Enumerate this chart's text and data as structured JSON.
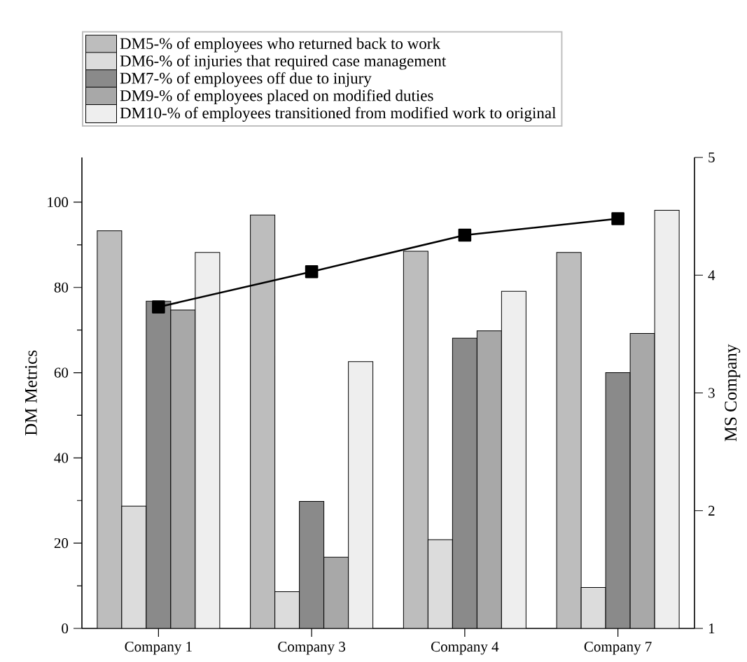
{
  "chart_data": {
    "type": "bar",
    "categories": [
      "Company 1",
      "Company 3",
      "Company 4",
      "Company 7"
    ],
    "ylabel": "DM Metrics",
    "y2label": "MS Company",
    "ylim": [
      0,
      110.5
    ],
    "yticks": [
      0,
      {
        "value": 10,
        "label": null
      },
      20,
      {
        "value": 30,
        "label": null
      },
      40,
      {
        "value": 50,
        "label": null
      },
      60,
      {
        "value": 70,
        "label": null
      },
      80,
      {
        "value": 90,
        "label": null
      },
      100
    ],
    "y2lim": [
      1,
      5
    ],
    "y2ticks": [
      1,
      2,
      3,
      4,
      5
    ],
    "legend": "top",
    "grid": false,
    "marker": "square",
    "line_style": "solid",
    "series": [
      {
        "name": "DM5-% of employees who returned back to work",
        "color": "#bdbdbd",
        "values": [
          93.3,
          97.0,
          88.5,
          88.2
        ]
      },
      {
        "name": "DM6-% of injuries that required case management",
        "color": "#dcdcdc",
        "values": [
          28.7,
          8.6,
          20.8,
          9.6
        ]
      },
      {
        "name": "DM7-% of employees off due to injury",
        "color": "#8a8a8a",
        "values": [
          76.8,
          29.8,
          68.1,
          60.0
        ]
      },
      {
        "name": "DM9-% of employees placed on modified duties",
        "color": "#a8a8a8",
        "values": [
          74.7,
          16.7,
          69.8,
          69.2
        ]
      },
      {
        "name": "DM10-% of employees transitioned from modified work to original",
        "color": "#eeeeee",
        "values": [
          88.2,
          62.6,
          79.1,
          98.1
        ]
      },
      {
        "type": "line",
        "axis": "y2",
        "color": "#000000",
        "values": [
          3.73,
          4.03,
          4.34,
          4.48
        ]
      }
    ]
  }
}
